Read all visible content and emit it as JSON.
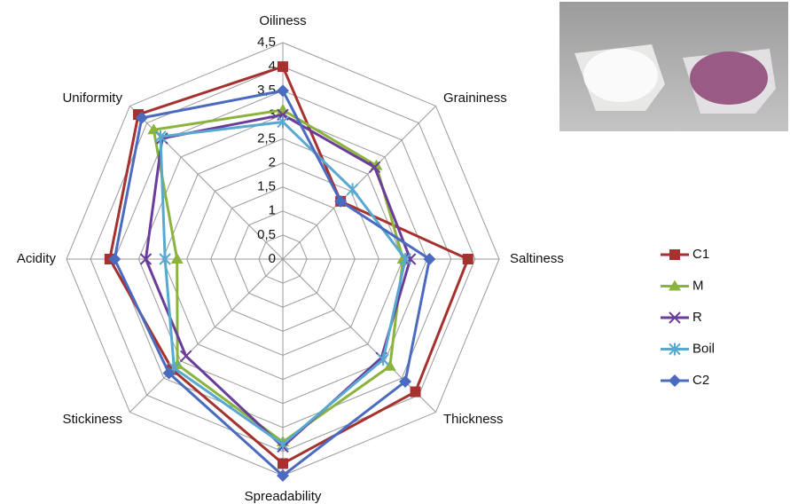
{
  "chart_data": {
    "type": "radar",
    "categories": [
      "Oiliness",
      "Graininess",
      "Saltiness",
      "Thickness",
      "Spreadability",
      "Stickiness",
      "Acidity",
      "Uniformity"
    ],
    "series": [
      {
        "name": "C1",
        "color": "#a5322f",
        "marker": "square",
        "values": [
          4.0,
          1.7,
          3.85,
          3.9,
          4.25,
          3.25,
          3.6,
          4.25
        ]
      },
      {
        "name": "M",
        "color": "#8ab43e",
        "marker": "triangle",
        "values": [
          3.1,
          2.75,
          2.5,
          3.15,
          3.8,
          3.1,
          2.2,
          3.8
        ]
      },
      {
        "name": "R",
        "color": "#6a3d9a",
        "marker": "x",
        "values": [
          3.0,
          2.7,
          2.65,
          2.9,
          3.9,
          2.85,
          2.85,
          3.55
        ]
      },
      {
        "name": "Boil",
        "color": "#58a8d0",
        "marker": "star",
        "values": [
          2.85,
          2.05,
          2.55,
          2.95,
          3.85,
          3.2,
          2.45,
          3.6
        ]
      },
      {
        "name": "C2",
        "color": "#4a6bbf",
        "marker": "diamond",
        "values": [
          3.5,
          1.7,
          3.05,
          3.6,
          4.5,
          3.35,
          3.5,
          4.15
        ]
      }
    ],
    "ylim": [
      0,
      4.5
    ],
    "yticks": [
      0,
      {
        "value": 0.5,
        "label": "0,5"
      },
      1,
      {
        "value": 1.5,
        "label": "1,5"
      },
      2,
      {
        "value": 2.5,
        "label": "2,5"
      },
      3,
      {
        "value": 3.5,
        "label": "3,5"
      },
      4,
      {
        "value": 4.5,
        "label": "4,5"
      }
    ],
    "grid": true,
    "legend": "right"
  }
}
